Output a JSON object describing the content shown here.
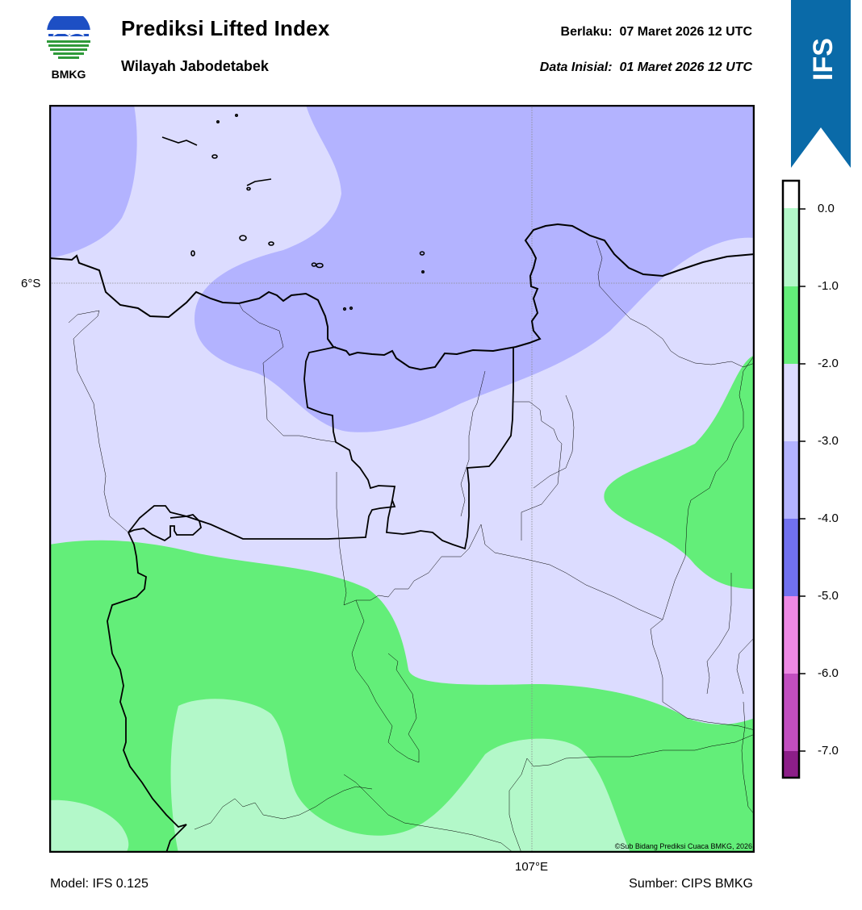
{
  "header": {
    "logo_text": "BMKG",
    "title": "Prediksi Lifted Index",
    "subtitle": "Wilayah Jabodetabek",
    "valid_label": "Berlaku:",
    "valid_time": "07 Maret 2026 12 UTC",
    "init_label": "Data Inisial:",
    "init_time": "01 Maret 2026 12 UTC",
    "model_badge": "IFS"
  },
  "map": {
    "lat_label": "6°S",
    "lon_label": "107°E",
    "copyright": "©Sub Bidang Prediksi Cuaca BMKG, 2026"
  },
  "colorbar": {
    "ticks": [
      "0.0",
      "-1.0",
      "-2.0",
      "-3.0",
      "-4.0",
      "-5.0",
      "-6.0",
      "-7.0"
    ],
    "colors": {
      "0_to_-1": "#b3f8c9",
      "-1_to_-2": "#63ee79",
      "-2_to_-3": "#dcdcff",
      "-3_to_-4": "#b3b3ff",
      "-4_to_-5": "#7070ef",
      "-5_to_-6": "#ee88e4",
      "-6_to_-7": "#c24ec0",
      "below_-7": "#8c1e88"
    }
  },
  "footer": {
    "model": "Model: IFS 0.125",
    "source": "Sumber: CIPS BMKG"
  },
  "colors": {
    "ifs_badge": "#0a6aa8",
    "land_light_green": "#b3f8c9",
    "land_green": "#63ee79",
    "lavender": "#dcdcff",
    "periwinkle": "#b3b3ff"
  }
}
